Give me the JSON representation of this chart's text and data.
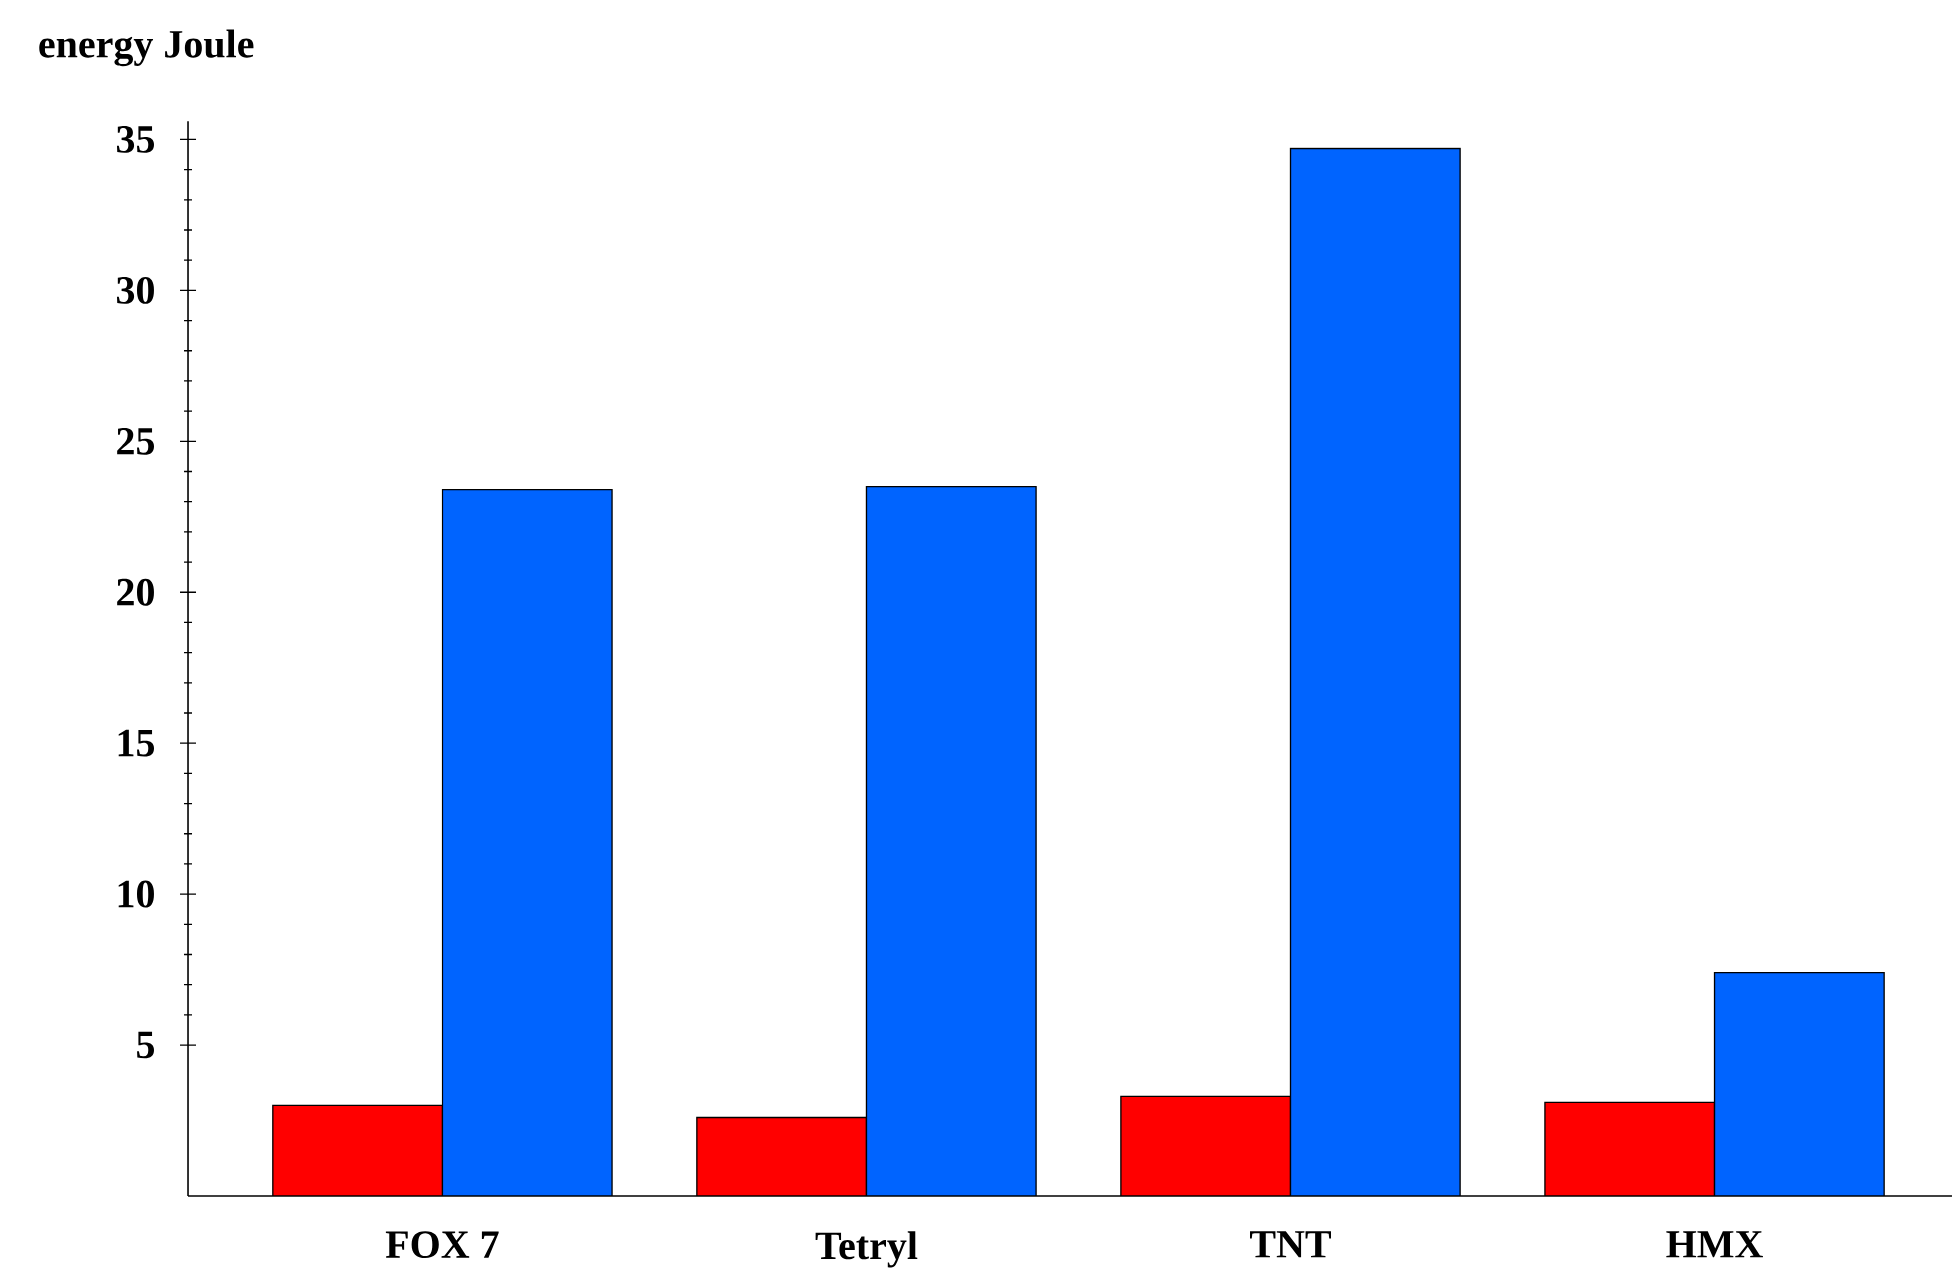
{
  "chart_data": {
    "type": "bar",
    "ylabel": "energy   Joule",
    "categories": [
      "FOX 7",
      "Tetryl",
      "TNT",
      "HMX"
    ],
    "series": [
      {
        "color": "#ff0000",
        "values": [
          3.0,
          2.6,
          3.3,
          3.1
        ]
      },
      {
        "color": "#0064ff",
        "values": [
          23.4,
          23.5,
          34.7,
          7.4
        ]
      }
    ],
    "ylim": [
      0,
      35.6
    ],
    "yticks": [
      5,
      10,
      15,
      20,
      25,
      30,
      35
    ],
    "grid": false
  }
}
